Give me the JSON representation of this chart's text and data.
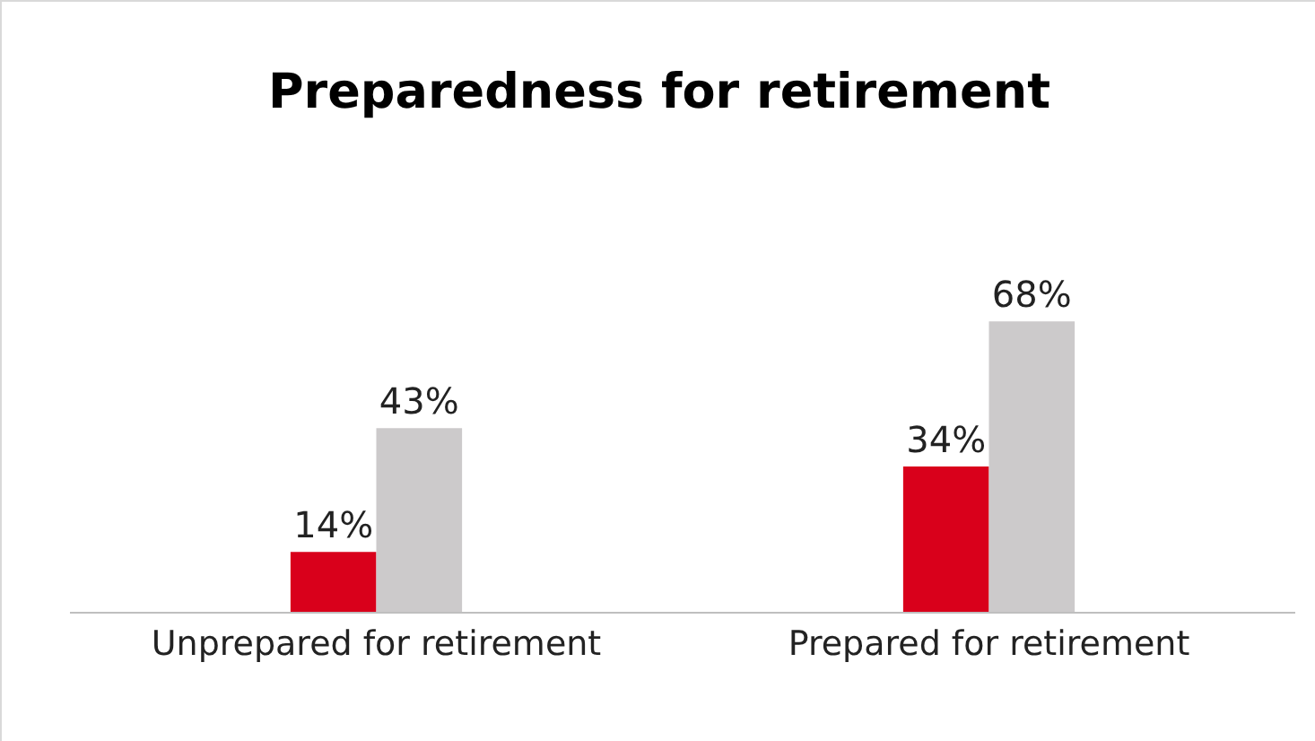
{
  "chart_data": {
    "type": "bar",
    "title": "Preparedness for retirement",
    "categories": [
      "Unprepared for retirement",
      "Prepared for retirement"
    ],
    "series": [
      {
        "color": "#d9001b",
        "values": [
          14,
          34
        ],
        "value_labels": [
          "14%",
          "34%"
        ]
      },
      {
        "color": "#cccacb",
        "values": [
          43,
          68
        ],
        "value_labels": [
          "43%",
          "68%"
        ]
      }
    ]
  }
}
